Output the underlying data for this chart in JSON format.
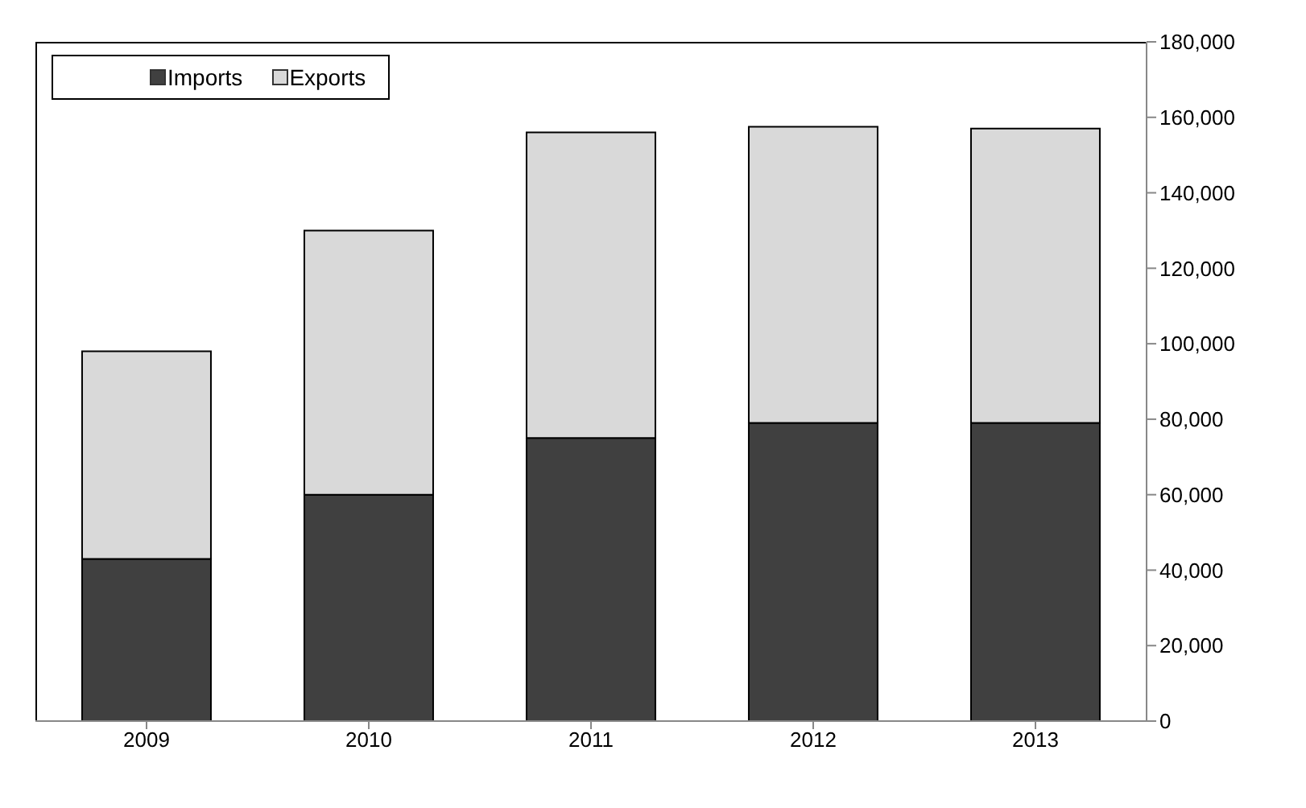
{
  "chart_data": {
    "type": "bar",
    "stacked": true,
    "categories": [
      "2009",
      "2010",
      "2011",
      "2012",
      "2013"
    ],
    "series": [
      {
        "name": "Imports",
        "color": "#404040",
        "values": [
          43000,
          60000,
          75000,
          79000,
          79000
        ]
      },
      {
        "name": "Exports",
        "color": "#d9d9d9",
        "values": [
          55000,
          70000,
          81000,
          78500,
          78000
        ]
      }
    ],
    "ylim": [
      0,
      180000
    ],
    "yticks": [
      0,
      {
        "value": 20000,
        "label": "20,000"
      },
      {
        "value": 40000,
        "label": "40,000"
      },
      {
        "value": 60000,
        "label": "60,000"
      },
      {
        "value": 80000,
        "label": "80,000"
      },
      {
        "value": 100000,
        "label": "100,000"
      },
      {
        "value": 120000,
        "label": "120,000"
      },
      {
        "value": 140000,
        "label": "140,000"
      },
      {
        "value": 160000,
        "label": "160,000"
      },
      {
        "value": 180000,
        "label": "180,000"
      }
    ],
    "grid": false,
    "legend": "top left"
  }
}
